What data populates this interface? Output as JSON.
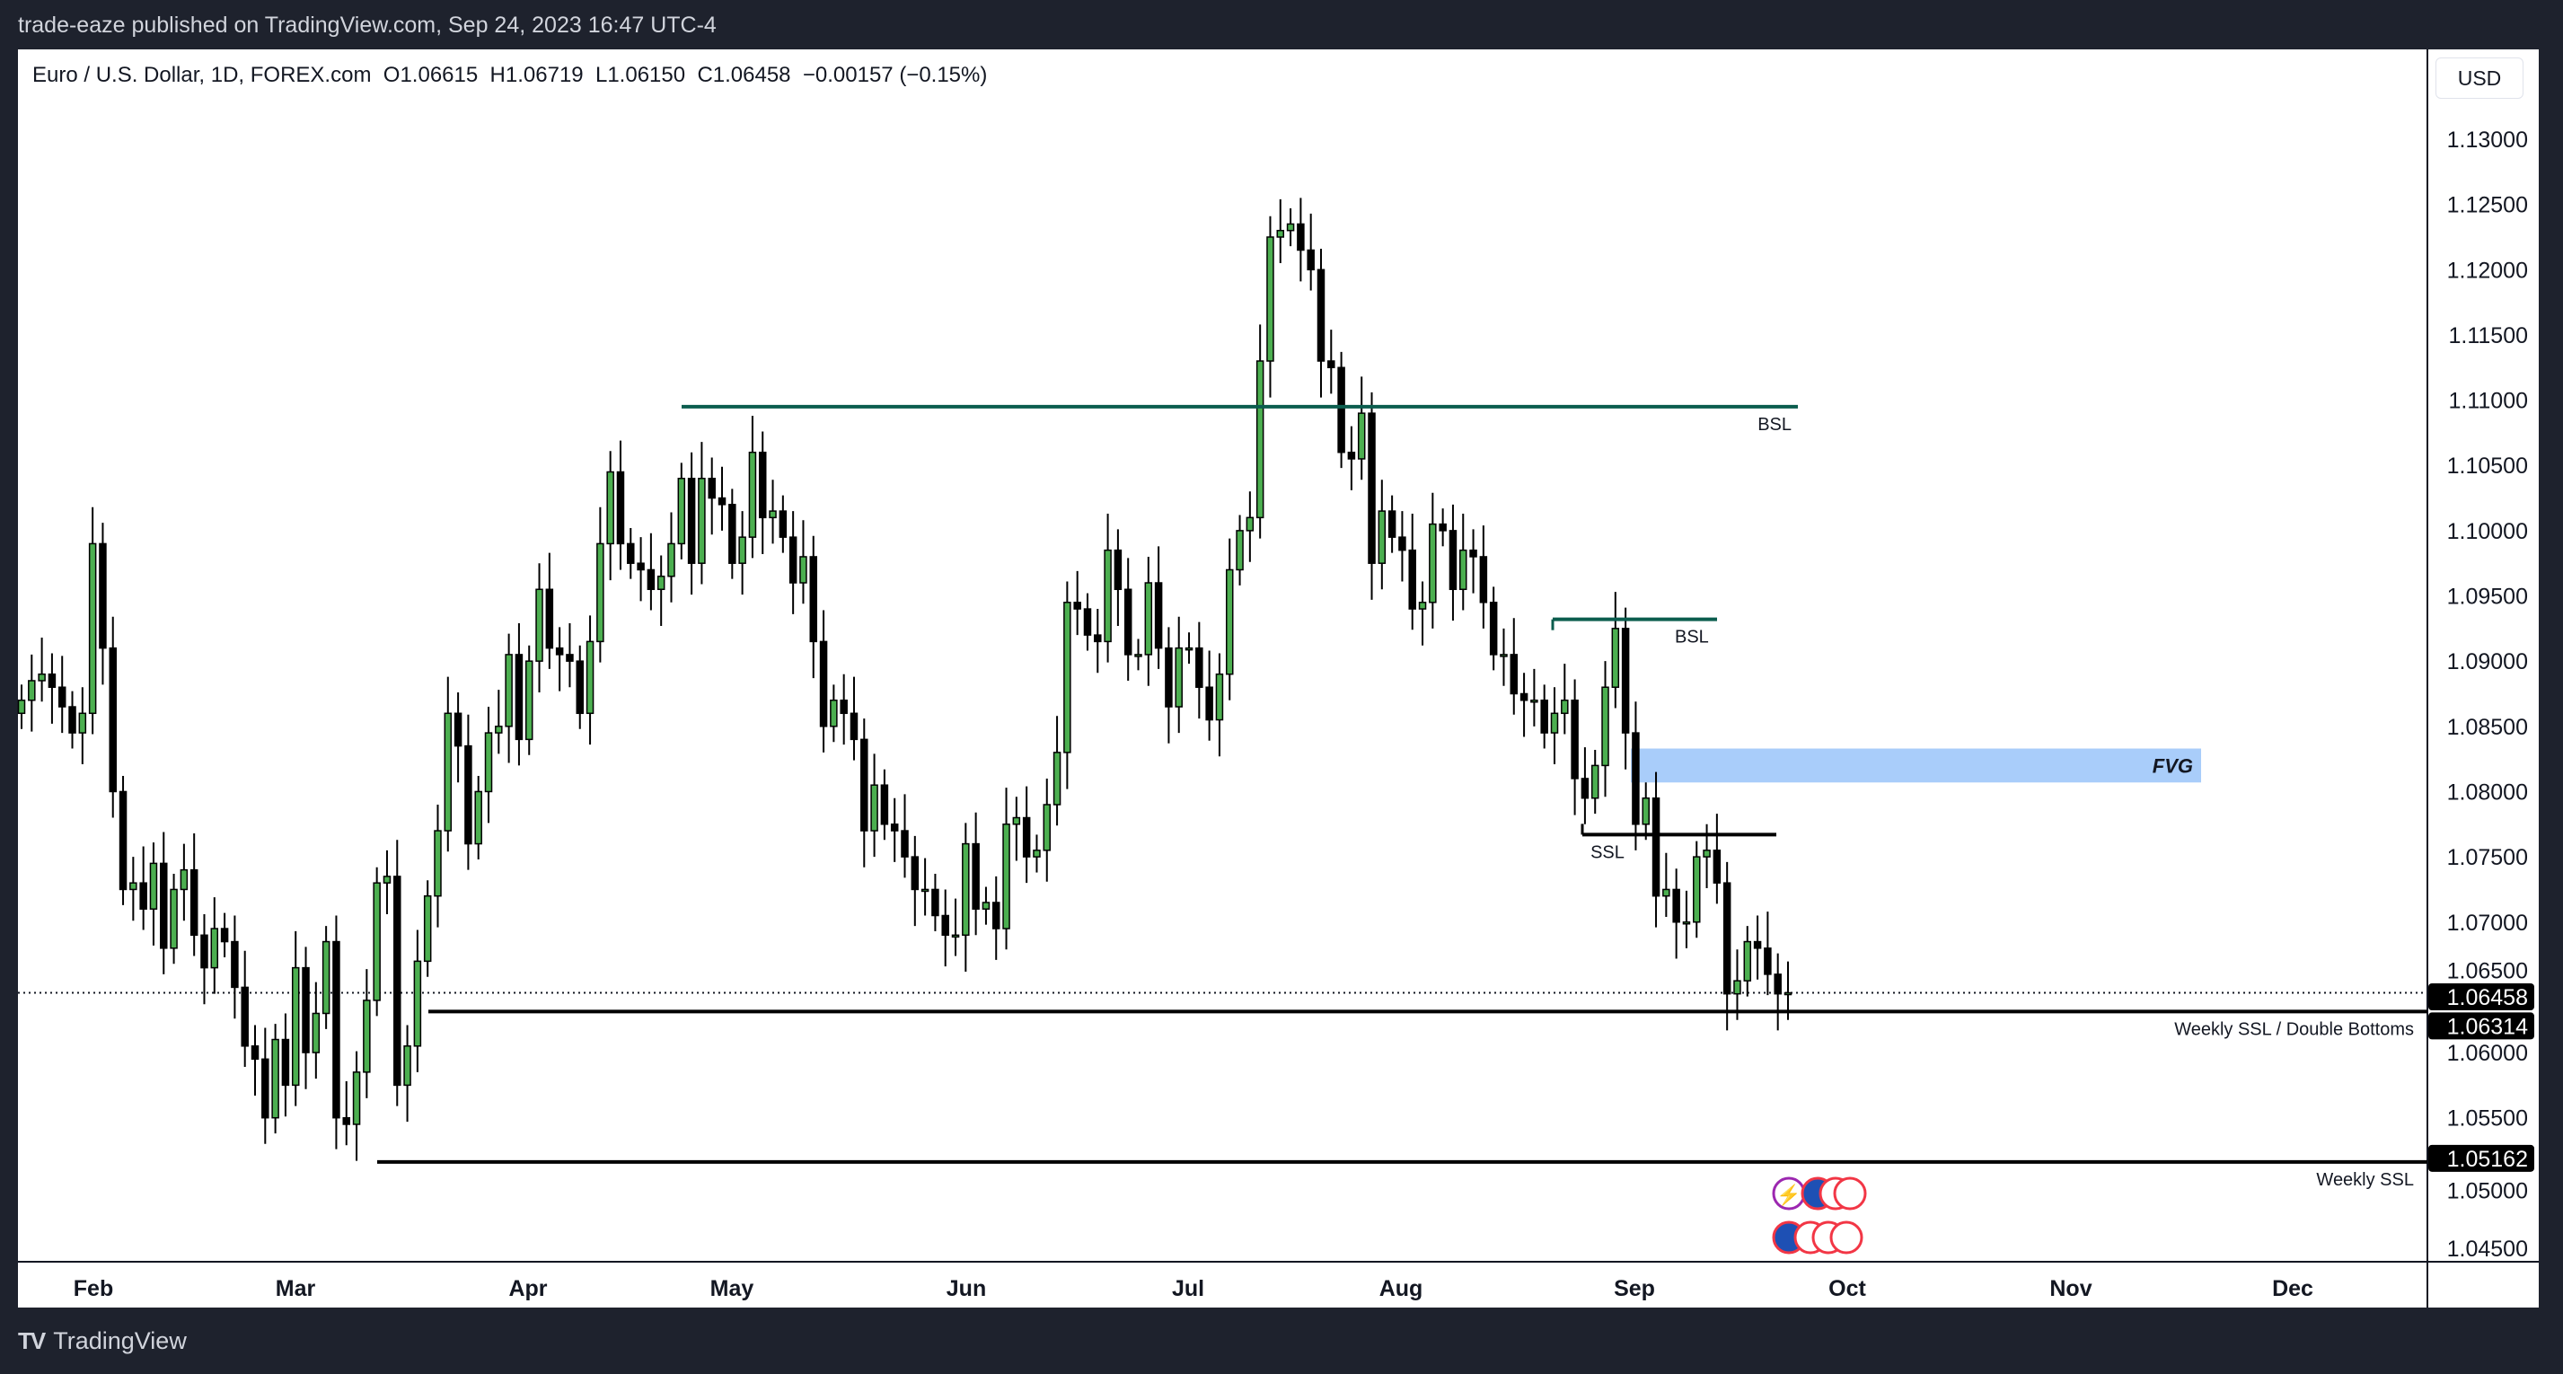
{
  "header": {
    "published": "trade-eaze published on TradingView.com, Sep 24, 2023 16:47 UTC-4"
  },
  "legend": {
    "symbol": "Euro / U.S. Dollar, 1D, FOREX.com",
    "open": "O1.06615",
    "high": "H1.06719",
    "low": "L1.06150",
    "close": "C1.06458",
    "change": "−0.00157 (−0.15%)"
  },
  "currency_button": "USD",
  "footer": {
    "brand": "TradingView"
  },
  "colors": {
    "up": "#4caf50",
    "down": "#000000",
    "fvg": "#a9cdfa",
    "bsl": "#0b5d4e"
  },
  "chart_data": {
    "type": "candlestick",
    "title": "Euro / U.S. Dollar, 1D, FOREX.com",
    "ylim": [
      1.045,
      1.13
    ],
    "yticks": [
      "1.13000",
      "1.12500",
      "1.12000",
      "1.11500",
      "1.11000",
      "1.10500",
      "1.10000",
      "1.09500",
      "1.09000",
      "1.08500",
      "1.08000",
      "1.07500",
      "1.07000",
      "1.06500",
      "1.06000",
      "1.05500",
      "1.05000",
      "1.04500"
    ],
    "xticks": [
      "Feb",
      "Mar",
      "Apr",
      "May",
      "Jun",
      "Jul",
      "Aug",
      "Sep",
      "Oct",
      "Nov",
      "Dec"
    ],
    "first_open": 1.086,
    "closes": [
      1.087,
      1.0885,
      1.089,
      1.088,
      1.0865,
      1.0845,
      1.086,
      1.099,
      1.091,
      1.08,
      1.0725,
      1.073,
      1.071,
      1.0745,
      1.068,
      1.0725,
      1.074,
      1.069,
      1.0665,
      1.0695,
      1.0685,
      1.065,
      1.0605,
      1.0595,
      1.055,
      1.061,
      1.0575,
      1.0665,
      1.06,
      1.063,
      1.0685,
      1.055,
      1.0545,
      1.0585,
      1.064,
      1.073,
      1.0735,
      1.0575,
      1.0605,
      1.067,
      1.072,
      1.077,
      1.086,
      1.0835,
      1.076,
      1.08,
      1.0845,
      1.085,
      1.0905,
      1.084,
      1.09,
      1.0955,
      1.091,
      1.0905,
      1.09,
      1.086,
      1.0915,
      1.099,
      1.1045,
      1.099,
      1.0975,
      1.097,
      1.0955,
      1.0965,
      1.099,
      1.104,
      1.0975,
      1.104,
      1.1025,
      1.102,
      1.0975,
      1.0995,
      1.106,
      1.101,
      1.1015,
      1.0995,
      1.096,
      1.098,
      1.0915,
      1.085,
      1.087,
      1.086,
      1.084,
      1.077,
      1.0805,
      1.0775,
      1.077,
      1.075,
      1.0725,
      1.0725,
      1.0705,
      1.069,
      1.069,
      1.076,
      1.071,
      1.0715,
      1.0695,
      1.0775,
      1.078,
      1.075,
      1.0755,
      1.079,
      1.083,
      1.0945,
      1.094,
      1.092,
      1.0915,
      1.0985,
      1.0955,
      1.0905,
      1.0905,
      1.096,
      1.091,
      1.0865,
      1.091,
      1.091,
      1.088,
      1.0855,
      1.089,
      1.097,
      1.1,
      1.101,
      1.113,
      1.1225,
      1.123,
      1.1235,
      1.1215,
      1.12,
      1.113,
      1.1125,
      1.106,
      1.1055,
      1.109,
      1.0975,
      1.1015,
      1.0995,
      1.0985,
      1.094,
      1.0945,
      1.1005,
      1.1,
      1.0955,
      1.0985,
      1.098,
      1.0945,
      1.0905,
      1.0905,
      1.0875,
      1.087,
      1.087,
      1.0845,
      1.086,
      1.087,
      1.081,
      1.0795,
      1.082,
      1.088,
      1.0925,
      1.0845,
      1.0775,
      1.0795,
      1.072,
      1.0725,
      1.07,
      1.07,
      1.075,
      1.0755,
      1.073,
      1.0645,
      1.0655,
      1.0685,
      1.068,
      1.066,
      1.0645,
      1.06458
    ],
    "annotations": {
      "bsl_major": {
        "label": "BSL",
        "price": 1.1095
      },
      "bsl_minor": {
        "label": "BSL",
        "price": 1.0932
      },
      "fvg": {
        "label": "FVG",
        "top": 1.0833,
        "bottom": 1.0807
      },
      "ssl": {
        "label": "SSL",
        "price": 1.0767
      },
      "weekly_ssl_double": {
        "label": "Weekly SSL / Double Bottoms",
        "price": 1.06314,
        "tag": "1.06314"
      },
      "weekly_ssl": {
        "label": "Weekly SSL",
        "price": 1.05162,
        "tag": "1.05162"
      },
      "last_price": {
        "price": 1.06458,
        "tag": "1.06458"
      }
    }
  }
}
